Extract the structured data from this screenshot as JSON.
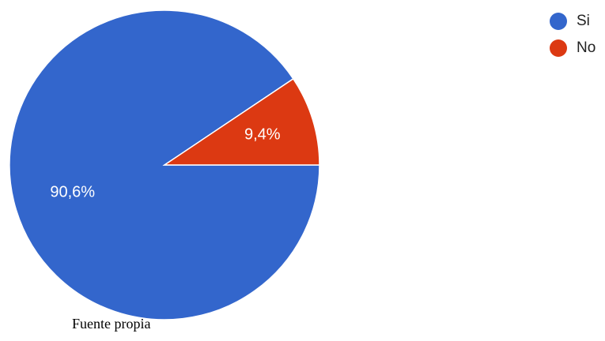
{
  "chart_data": {
    "type": "pie",
    "title": "",
    "categories": [
      "Si",
      "No"
    ],
    "values": [
      90.6,
      9.4
    ],
    "value_labels": [
      "90,6%",
      "9,4%"
    ],
    "colors": [
      "#3366CC",
      "#DC3912"
    ],
    "legend_position": "top-right",
    "start": "3 o'clock, counter-clockwise for No"
  },
  "legend": {
    "items": [
      {
        "label": "Si",
        "color": "#3366CC"
      },
      {
        "label": "No",
        "color": "#DC3912"
      }
    ]
  },
  "caption": {
    "source": "Fuente propia"
  }
}
